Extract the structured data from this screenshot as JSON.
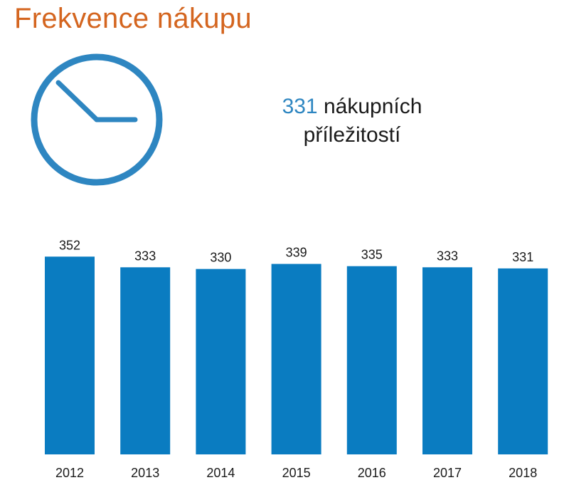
{
  "title": "Frekvence nákupu",
  "headline": {
    "value": "331",
    "text_line1": "nákupních",
    "text_line2": "příležitostí"
  },
  "icon": "clock-icon",
  "colors": {
    "title": "#d4651f",
    "accent": "#2e86c1",
    "bar": "#0a7cc1"
  },
  "chart_data": {
    "type": "bar",
    "categories": [
      "2012",
      "2013",
      "2014",
      "2015",
      "2016",
      "2017",
      "2018"
    ],
    "values": [
      352,
      333,
      330,
      339,
      335,
      333,
      331
    ],
    "data_labels": [
      "352",
      "333",
      "330",
      "339",
      "335",
      "333",
      "331"
    ],
    "title": "",
    "xlabel": "",
    "ylabel": "",
    "ylim": [
      0,
      360
    ],
    "grid": false,
    "legend": "none"
  }
}
